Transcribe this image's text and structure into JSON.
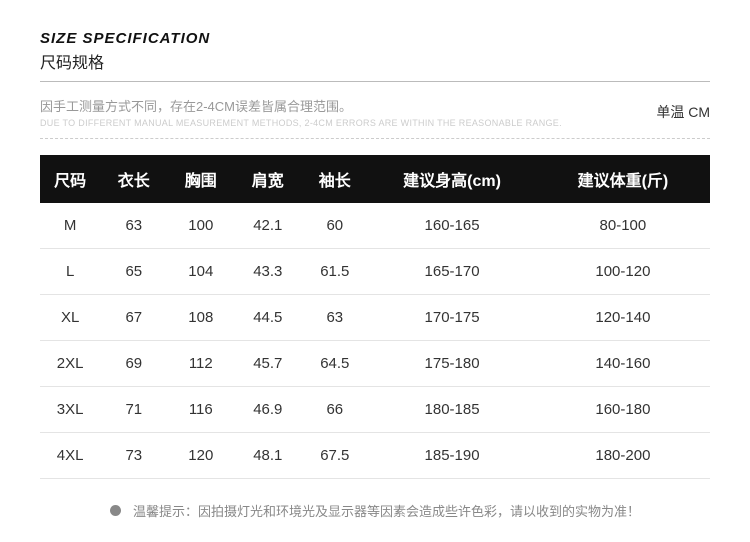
{
  "header": {
    "title_en": "SIZE SPECIFICATION",
    "title_cn": "尺码规格",
    "note_cn": "因手工测量方式不同，存在2-4CM误差皆属合理范围。",
    "note_en": "DUE TO DIFFERENT MANUAL MEASUREMENT METHODS, 2-4CM ERRORS ARE WITHIN THE REASONABLE RANGE.",
    "unit": "单温 CM"
  },
  "table": {
    "header_bg": "#111111",
    "header_color": "#ffffff",
    "row_border": "#e4e4e4",
    "columns": [
      "尺码",
      "衣长",
      "胸围",
      "肩宽",
      "袖长",
      "建议身高(cm)",
      "建议体重(斤)"
    ],
    "rows": [
      [
        "M",
        "63",
        "100",
        "42.1",
        "60",
        "160-165",
        "80-100"
      ],
      [
        "L",
        "65",
        "104",
        "43.3",
        "61.5",
        "165-170",
        "100-120"
      ],
      [
        "XL",
        "67",
        "108",
        "44.5",
        "63",
        "170-175",
        "120-140"
      ],
      [
        "2XL",
        "69",
        "112",
        "45.7",
        "64.5",
        "175-180",
        "140-160"
      ],
      [
        "3XL",
        "71",
        "116",
        "46.9",
        "66",
        "180-185",
        "160-180"
      ],
      [
        "4XL",
        "73",
        "120",
        "48.1",
        "67.5",
        "185-190",
        "180-200"
      ]
    ]
  },
  "footer": {
    "tip": "温馨提示：因拍摄灯光和环境光及显示器等因素会造成些许色彩，请以收到的实物为准！"
  }
}
